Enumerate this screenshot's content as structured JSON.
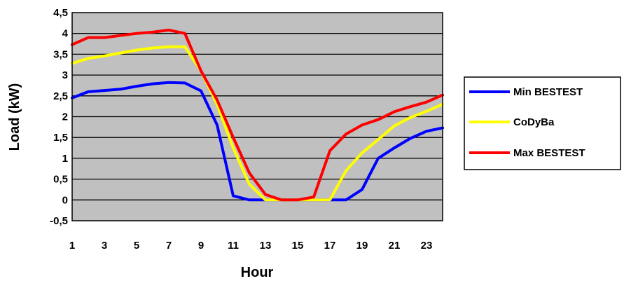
{
  "chart_data": {
    "type": "line",
    "title": "",
    "xlabel": "Hour",
    "ylabel": "Load (kW)",
    "x": [
      1,
      2,
      3,
      4,
      5,
      6,
      7,
      8,
      9,
      10,
      11,
      12,
      13,
      14,
      15,
      16,
      17,
      18,
      19,
      20,
      21,
      22,
      23,
      24
    ],
    "x_tick_labels": [
      "1",
      "3",
      "5",
      "7",
      "9",
      "11",
      "13",
      "15",
      "17",
      "19",
      "21",
      "23"
    ],
    "y_tick_labels": [
      "-0,5",
      "0",
      "0,5",
      "1",
      "1,5",
      "2",
      "2,5",
      "3",
      "3,5",
      "4",
      "4,5"
    ],
    "xlim": [
      1,
      24
    ],
    "ylim": [
      -0.5,
      4.5
    ],
    "grid": true,
    "plot_background": "#c0c0c0",
    "legend_position": "right",
    "series": [
      {
        "name": "Min BESTEST",
        "color": "#0000ff",
        "values": [
          2.45,
          2.6,
          2.63,
          2.66,
          2.73,
          2.79,
          2.82,
          2.81,
          2.62,
          1.8,
          0.1,
          0.0,
          0.0,
          0.0,
          0.0,
          0.0,
          0.0,
          0.0,
          0.25,
          1.0,
          1.25,
          1.48,
          1.65,
          1.73
        ]
      },
      {
        "name": "CoDyBa",
        "color": "#ffff00",
        "values": [
          3.28,
          3.4,
          3.46,
          3.53,
          3.6,
          3.65,
          3.68,
          3.68,
          3.1,
          2.3,
          1.25,
          0.38,
          0.0,
          0.0,
          0.0,
          0.0,
          0.0,
          0.7,
          1.13,
          1.45,
          1.78,
          1.98,
          2.13,
          2.3
        ]
      },
      {
        "name": "Max BESTEST",
        "color": "#ff0000",
        "values": [
          3.73,
          3.9,
          3.9,
          3.95,
          4.0,
          4.03,
          4.08,
          4.0,
          3.1,
          2.4,
          1.5,
          0.65,
          0.13,
          0.0,
          0.0,
          0.07,
          1.18,
          1.58,
          1.8,
          1.93,
          2.12,
          2.24,
          2.35,
          2.52
        ]
      }
    ]
  }
}
